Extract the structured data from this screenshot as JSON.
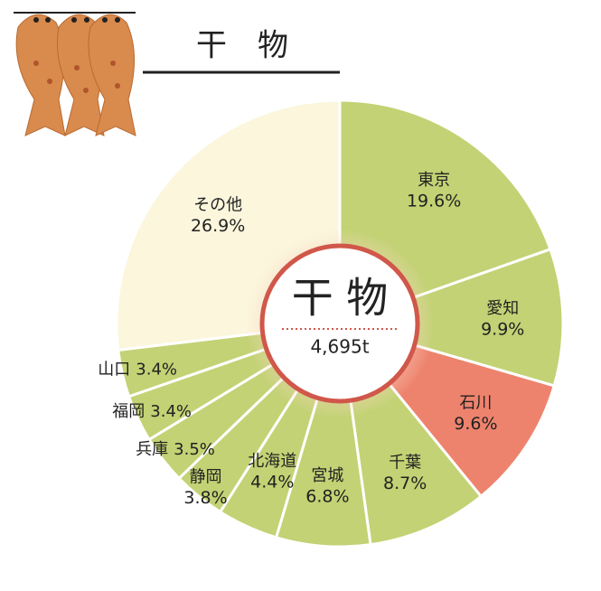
{
  "chart_data": {
    "type": "donut",
    "title": "干　物",
    "center_title": "干 物",
    "center_subtitle": "4,695t",
    "categories": [
      "東京",
      "愛知",
      "石川",
      "千葉",
      "宮城",
      "北海道",
      "静岡",
      "兵庫",
      "福岡",
      "山口",
      "その他"
    ],
    "values": [
      19.6,
      9.9,
      9.6,
      8.7,
      6.8,
      4.4,
      3.8,
      3.5,
      3.4,
      3.4,
      26.9
    ],
    "value_labels": [
      "19.6%",
      "9.9%",
      "9.6%",
      "8.7%",
      "6.8%",
      "4.4%",
      "3.8%",
      "3.5%",
      "3.4%",
      "3.4%",
      "26.9%"
    ],
    "colors": [
      "#c3d274",
      "#c3d274",
      "#ee836d",
      "#c3d274",
      "#c3d274",
      "#c3d274",
      "#c3d274",
      "#c3d274",
      "#c3d274",
      "#c3d274",
      "#fbf6dc"
    ]
  }
}
